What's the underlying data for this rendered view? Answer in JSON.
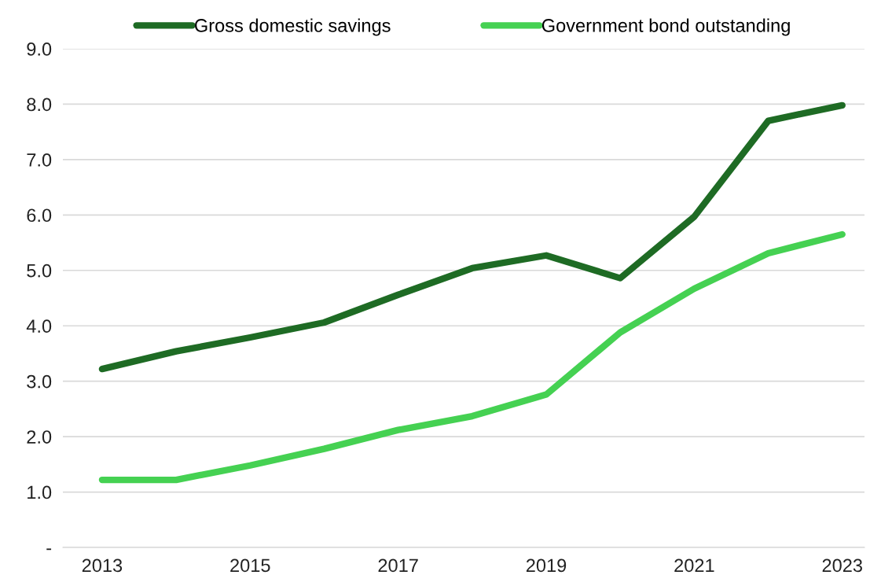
{
  "chart_data": {
    "type": "line",
    "x": [
      2013,
      2014,
      2015,
      2016,
      2017,
      2018,
      2019,
      2020,
      2021,
      2022,
      2023
    ],
    "series": [
      {
        "name": "Gross domestic savings",
        "color": "#1e6b24",
        "values": [
          3.22,
          3.54,
          3.79,
          4.06,
          4.56,
          5.04,
          5.27,
          4.86,
          5.97,
          7.7,
          7.98
        ]
      },
      {
        "name": "Government bond outstanding",
        "color": "#45d152",
        "values": [
          1.22,
          1.22,
          1.48,
          1.78,
          2.12,
          2.37,
          2.76,
          3.88,
          4.67,
          5.31,
          5.65
        ]
      }
    ],
    "xlim": [
      2012.47,
      2023.3
    ],
    "xticks": [
      2013,
      2015,
      2017,
      2019,
      2021,
      2023
    ],
    "ylim": [
      0,
      9.0
    ],
    "yticks": [
      {
        "value": 0,
        "label": "-"
      },
      {
        "value": 1,
        "label": "1.0"
      },
      {
        "value": 2,
        "label": "2.0"
      },
      {
        "value": 3,
        "label": "3.0"
      },
      {
        "value": 4,
        "label": "4.0"
      },
      {
        "value": 5,
        "label": "5.0"
      },
      {
        "value": 6,
        "label": "6.0"
      },
      {
        "value": 7,
        "label": "7.0"
      },
      {
        "value": 8,
        "label": "8.0"
      },
      {
        "value": 9,
        "label": "9.0"
      }
    ],
    "grid": "y",
    "legend": "top",
    "marker": "none",
    "line_style": "solid"
  }
}
